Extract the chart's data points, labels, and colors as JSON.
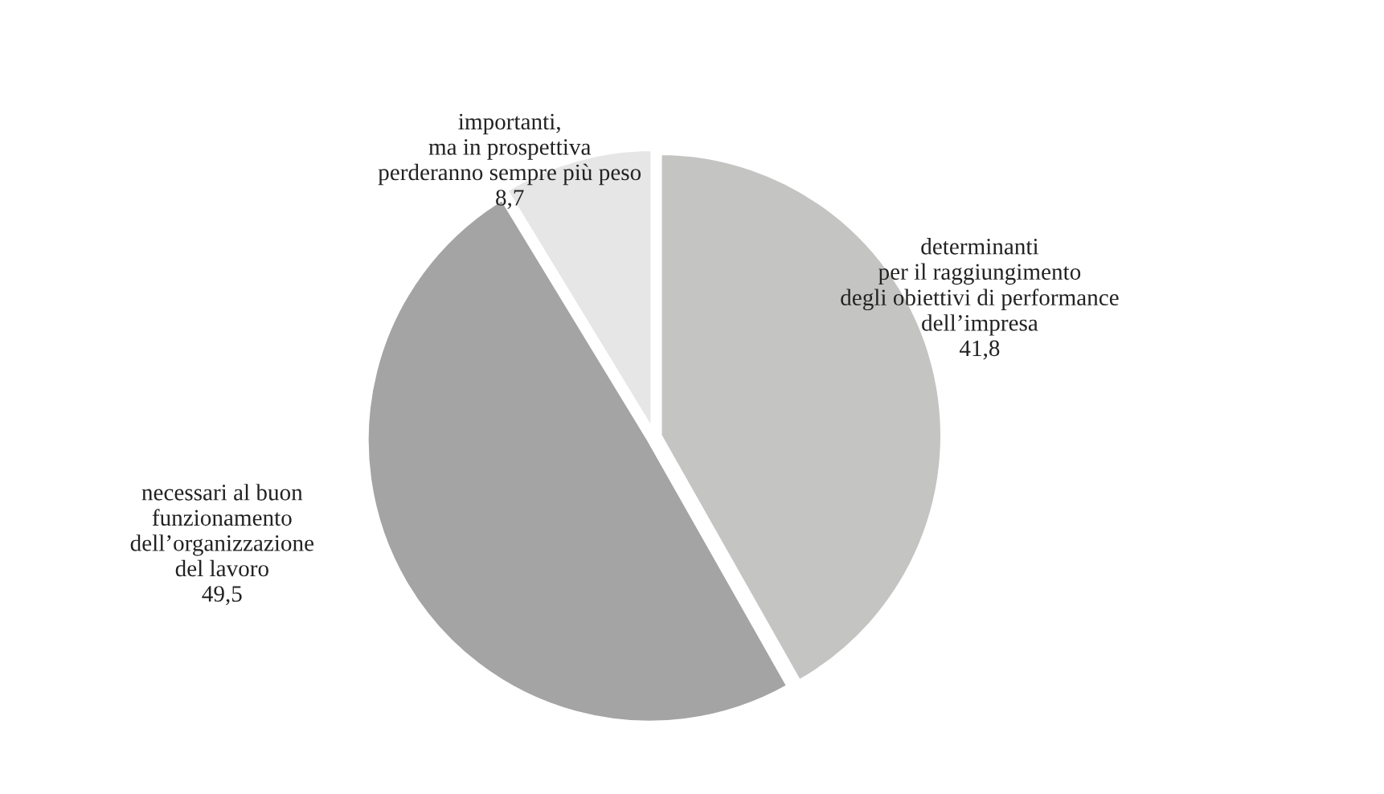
{
  "chart_data": {
    "type": "pie",
    "categories": [
      "determinanti\nper il raggiungimento\ndegli obiettivi di performance\ndell’impresa",
      "necessari al buon\nfunzionamento\ndell’organizzazione\ndel lavoro",
      "importanti,\nma in prospettiva\nperderanno sempre più peso"
    ],
    "values": [
      41.8,
      49.5,
      8.7
    ],
    "value_labels": [
      "41,8",
      "49,5",
      "8,7"
    ],
    "colors": [
      "#c4c4c3",
      "#a3a4a3",
      "#e6e6e6"
    ]
  }
}
